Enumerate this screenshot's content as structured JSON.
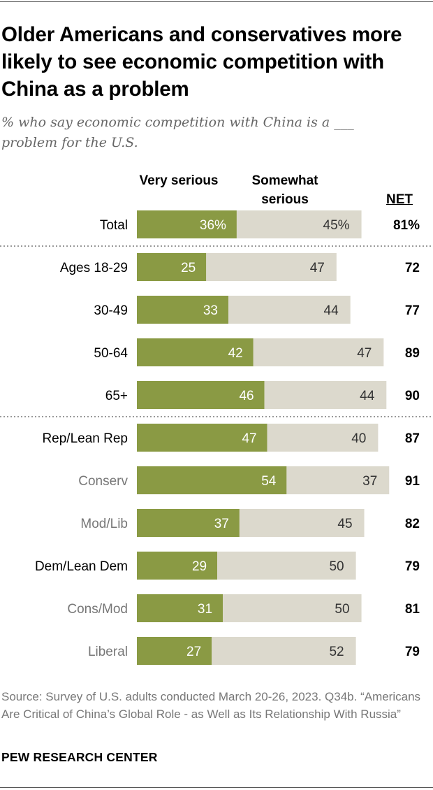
{
  "title": "Older Americans and conservatives more likely to see economic competition with China as a problem",
  "subtitle": "% who say economic competition with China is a ___ problem for the U.S.",
  "colors": {
    "very": "#8a9a44",
    "somewhat": "#dcd9cd",
    "label_primary": "#000000",
    "label_secondary": "#777777",
    "divider": "#999999"
  },
  "chart_data": {
    "type": "bar",
    "stacked": true,
    "orientation": "horizontal",
    "legend": {
      "very_label": "Very serious",
      "somewhat_label": "Somewhat serious",
      "net_label": "NET"
    },
    "categories": [
      "Total",
      "Ages 18-29",
      "30-49",
      "50-64",
      "65+",
      "Rep/Lean Rep",
      "Conserv",
      "Mod/Lib",
      "Dem/Lean Dem",
      "Cons/Mod",
      "Liberal"
    ],
    "category_style": [
      "primary",
      "primary",
      "primary",
      "primary",
      "primary",
      "primary",
      "secondary",
      "secondary",
      "primary",
      "secondary",
      "secondary"
    ],
    "groups": [
      [
        "Total"
      ],
      [
        "Ages 18-29",
        "30-49",
        "50-64",
        "65+"
      ],
      [
        "Rep/Lean Rep",
        "Conserv",
        "Mod/Lib",
        "Dem/Lean Dem",
        "Cons/Mod",
        "Liberal"
      ]
    ],
    "series": [
      {
        "name": "Very serious",
        "values": [
          36,
          25,
          33,
          42,
          46,
          47,
          54,
          37,
          29,
          31,
          27
        ],
        "labels": [
          "36%",
          "25",
          "33",
          "42",
          "46",
          "47",
          "54",
          "37",
          "29",
          "31",
          "27"
        ]
      },
      {
        "name": "Somewhat serious",
        "values": [
          45,
          47,
          44,
          47,
          44,
          40,
          37,
          45,
          50,
          50,
          52
        ],
        "labels": [
          "45%",
          "47",
          "44",
          "47",
          "44",
          "40",
          "37",
          "45",
          "50",
          "50",
          "52"
        ]
      }
    ],
    "net": [
      "81%",
      "72",
      "77",
      "89",
      "90",
      "87",
      "91",
      "82",
      "79",
      "81",
      "79"
    ],
    "xlim": [
      0,
      100
    ]
  },
  "source": "Source: Survey of U.S. adults conducted March 20-26, 2023. Q34b. “Americans Are Critical of China’s Global Role - as Well as Its Relationship With Russia”",
  "footer": "PEW RESEARCH CENTER"
}
